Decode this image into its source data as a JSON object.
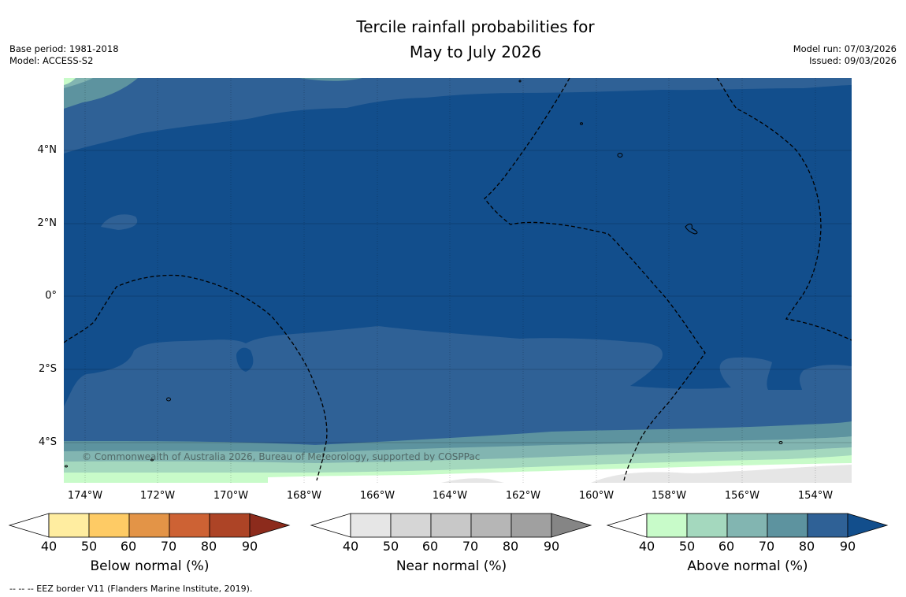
{
  "title": {
    "line1": "Tercile rainfall probabilities for",
    "line2": "May to July 2026"
  },
  "meta_left": {
    "base_period": "Base period: 1981-2018",
    "model": "Model: ACCESS-S2"
  },
  "meta_right": {
    "model_run": "Model run: 07/03/2026",
    "issued": "Issued: 09/03/2026"
  },
  "map": {
    "y_labels": [
      "4°N",
      "2°N",
      "0°",
      "2°S",
      "4°S"
    ],
    "x_labels": [
      "174°W",
      "172°W",
      "170°W",
      "168°W",
      "166°W",
      "164°W",
      "162°W",
      "160°W",
      "158°W",
      "156°W",
      "154°W"
    ],
    "copyright": "© Commonwealth of Australia 2026, Bureau of Meteorology, supported by COSPPac"
  },
  "legends": [
    {
      "title": "Below normal (%)",
      "ticks": [
        "40",
        "50",
        "60",
        "70",
        "80",
        "90"
      ],
      "colors": [
        "#ffffff",
        "#ffeda0",
        "#fecb65",
        "#e39447",
        "#cd6234",
        "#ad4426",
        "#8c2b1c"
      ]
    },
    {
      "title": "Near normal (%)",
      "ticks": [
        "40",
        "50",
        "60",
        "70",
        "80",
        "90"
      ],
      "colors": [
        "#ffffff",
        "#e6e6e6",
        "#d6d6d6",
        "#c8c8c8",
        "#b6b6b6",
        "#a0a0a0",
        "#858585"
      ]
    },
    {
      "title": "Above normal (%)",
      "ticks": [
        "40",
        "50",
        "60",
        "70",
        "80",
        "90"
      ],
      "colors": [
        "#ffffff",
        "#c8fbc9",
        "#a4d8be",
        "#82b5b1",
        "#5d939f",
        "#2f6196",
        "#124e8c"
      ]
    }
  ],
  "footnote": "--  --  -- EEZ border V11 (Flanders Marine Institute, 2019).",
  "palette": {
    "above_90": "#124e8c",
    "above_80": "#2f6196",
    "above_70": "#5d939f",
    "above_60": "#82b5b1",
    "above_50": "#a4d8be",
    "above_40": "#c8fbc9",
    "near_50": "#e6e6e6",
    "near_60": "#d6d6d6"
  }
}
